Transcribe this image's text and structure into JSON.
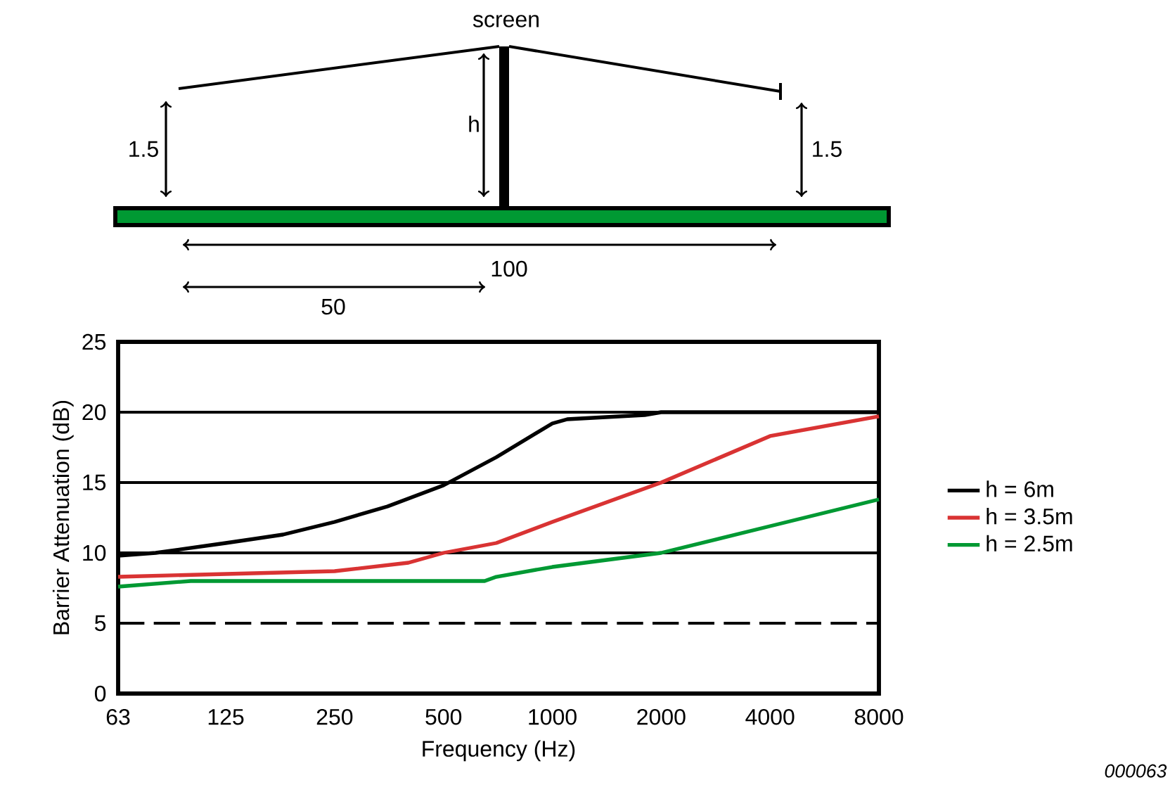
{
  "chart_data": {
    "type": "line",
    "xlabel": "Frequency (Hz)",
    "ylabel": "Barrier Attenuation (dB)",
    "log": "x",
    "xlim": [
      63,
      8000
    ],
    "xticks": [
      63,
      125,
      250,
      500,
      1000,
      2000,
      4000,
      8000
    ],
    "ylim": [
      0,
      25
    ],
    "yticks": [
      0,
      5,
      10,
      15,
      20,
      25
    ],
    "legend": "right",
    "line_style": "solid",
    "series": [
      {
        "name": "h = 6m",
        "color": "#000000",
        "x": [
          63,
          80,
          125,
          180,
          250,
          350,
          500,
          700,
          1000,
          1100,
          1800,
          2000,
          8000
        ],
        "values": [
          9.8,
          10,
          10.7,
          11.3,
          12.2,
          13.3,
          14.8,
          16.8,
          19.2,
          19.5,
          19.8,
          20,
          20
        ]
      },
      {
        "name": "h = 3.5m",
        "color": "#d93333",
        "x": [
          63,
          125,
          250,
          400,
          500,
          700,
          1000,
          2000,
          4000,
          8000
        ],
        "values": [
          8.3,
          8.5,
          8.7,
          9.3,
          10,
          10.7,
          12.2,
          15,
          18.3,
          19.7
        ]
      },
      {
        "name": "h = 2.5m",
        "color": "#009933",
        "x": [
          63,
          100,
          650,
          700,
          1000,
          2000,
          4000,
          8000
        ],
        "values": [
          7.6,
          8,
          8,
          8.3,
          9,
          10,
          11.9,
          13.8
        ]
      }
    ],
    "ref_lines": [
      {
        "axis": "y",
        "value": 5,
        "line_style": "dashed",
        "color": "#000000"
      },
      {
        "axis": "y",
        "value": 10,
        "line_style": "solid",
        "color": "#000000"
      },
      {
        "axis": "y",
        "value": 15,
        "line_style": "solid",
        "color": "#000000"
      },
      {
        "axis": "y",
        "value": 20,
        "line_style": "solid",
        "color": "#000000"
      }
    ],
    "annotations": [
      "screen",
      "h",
      "1.5",
      "1.5",
      "100",
      "50",
      "000063"
    ]
  }
}
